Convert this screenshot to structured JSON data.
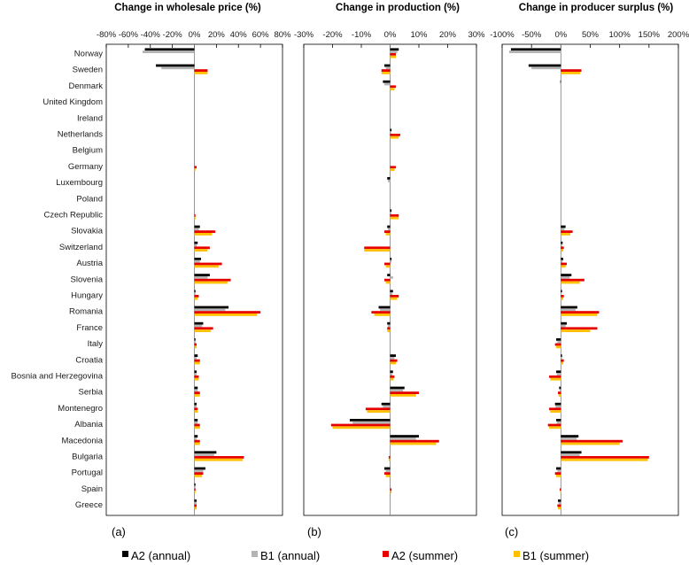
{
  "colors": {
    "A2_annual": "#000000",
    "B1_annual": "#b4b4b4",
    "A2_summer": "#e60000",
    "B1_summer": "#ffc000"
  },
  "countries": [
    "Norway",
    "Sweden",
    "Denmark",
    "United Kingdom",
    "Ireland",
    "Netherlands",
    "Belgium",
    "Germany",
    "Luxembourg",
    "Poland",
    "Czech Republic",
    "Slovakia",
    "Switzerland",
    "Austria",
    "Slovenia",
    "Hungary",
    "Romania",
    "France",
    "Italy",
    "Croatia",
    "Bosnia and Herzegovina",
    "Serbia",
    "Montenegro",
    "Albania",
    "Macedonia",
    "Bulgaria",
    "Portugal",
    "Spain",
    "Greece"
  ],
  "legend": [
    {
      "label": "A2 (annual)",
      "key": "A2_annual"
    },
    {
      "label": "B1 (annual)",
      "key": "B1_annual"
    },
    {
      "label": "A2 (summer)",
      "key": "A2_summer"
    },
    {
      "label": "B1 (summer)",
      "key": "B1_summer"
    }
  ],
  "chart_data": [
    {
      "type": "bar",
      "title": "Change in wholesale price (%)",
      "panel_label": "(a)",
      "xlim": [
        -80,
        80
      ],
      "xticks": [
        -80,
        -60,
        -40,
        -20,
        0,
        20,
        40,
        60,
        80
      ],
      "tick_labels": [
        "-80%",
        "-60%",
        "-40%",
        "-20%",
        "0%",
        "20%",
        "40%",
        "60%",
        "80%"
      ],
      "series": [
        {
          "name": "A2 (annual)",
          "key": "A2_annual",
          "values": [
            -45,
            -35,
            0,
            0,
            0,
            0,
            0,
            0,
            0,
            0,
            0,
            5,
            3,
            6,
            14,
            1,
            31,
            8,
            1,
            3,
            2,
            3,
            2,
            3,
            3,
            20,
            10,
            1,
            2
          ]
        },
        {
          "name": "B1 (annual)",
          "key": "B1_annual",
          "values": [
            -47,
            -30,
            0,
            0,
            0,
            0,
            0,
            0,
            0,
            0,
            0,
            4,
            2,
            5,
            12,
            1,
            28,
            7,
            1,
            2,
            2,
            3,
            2,
            3,
            2,
            18,
            8,
            1,
            2
          ]
        },
        {
          "name": "A2 (summer)",
          "key": "A2_summer",
          "values": [
            0,
            12,
            0,
            0,
            0,
            0,
            0,
            2,
            0,
            0,
            1,
            19,
            14,
            25,
            33,
            4,
            60,
            17,
            2,
            5,
            4,
            5,
            3,
            5,
            5,
            45,
            8,
            1,
            2
          ]
        },
        {
          "name": "B1 (summer)",
          "key": "B1_summer",
          "values": [
            0,
            12,
            0,
            0,
            0,
            0,
            0,
            1,
            0,
            0,
            1,
            16,
            12,
            22,
            30,
            3,
            57,
            15,
            2,
            5,
            4,
            5,
            3,
            5,
            5,
            44,
            7,
            1,
            2
          ]
        }
      ]
    },
    {
      "type": "bar",
      "title": "Change in production (%)",
      "panel_label": "(b)",
      "xlim": [
        -30,
        30
      ],
      "xticks": [
        -30,
        -20,
        -10,
        0,
        10,
        20,
        30
      ],
      "tick_labels": [
        "-30%",
        "-20%",
        "-10%",
        "0%",
        "10%",
        "20%",
        "30%"
      ],
      "series": [
        {
          "name": "A2 (annual)",
          "key": "A2_annual",
          "values": [
            3,
            -2,
            -2.5,
            0,
            0,
            0.5,
            0,
            0,
            -1,
            0,
            0.5,
            -1,
            0,
            0.5,
            -1,
            1,
            -4,
            -1,
            0,
            2,
            1,
            5,
            -3,
            -14,
            10,
            0,
            -2,
            0,
            0
          ]
        },
        {
          "name": "B1 (annual)",
          "key": "B1_annual",
          "values": [
            2.5,
            -1.5,
            -2,
            0,
            0,
            0.4,
            0,
            0,
            -0.8,
            0,
            0.4,
            -0.8,
            0,
            0.5,
            1,
            0.8,
            -3.5,
            -0.8,
            0,
            1.5,
            0.8,
            4.5,
            -2.5,
            -13,
            9,
            0,
            -1.5,
            0,
            0
          ]
        },
        {
          "name": "A2 (summer)",
          "key": "A2_summer",
          "values": [
            2,
            -3,
            2,
            0,
            0,
            3.5,
            0,
            2,
            0,
            0,
            3,
            -2,
            -9,
            -2,
            -2,
            3,
            -6.5,
            -1,
            0,
            2.5,
            1.5,
            10,
            -8.5,
            -20.5,
            17,
            -0.5,
            -2,
            0.5,
            0
          ]
        },
        {
          "name": "B1 (summer)",
          "key": "B1_summer",
          "values": [
            2,
            -3,
            1.5,
            0,
            0,
            3,
            0,
            1.5,
            0,
            0,
            3,
            -1.5,
            -9,
            -1.5,
            -1.5,
            2.5,
            -5.5,
            -1,
            0,
            2,
            1.2,
            9,
            -8,
            -20,
            16,
            -0.5,
            -1.5,
            0.5,
            0
          ]
        }
      ]
    },
    {
      "type": "bar",
      "title": "Change in producer surplus (%)",
      "panel_label": "(c)",
      "xlim": [
        -100,
        200
      ],
      "xticks": [
        -100,
        -50,
        0,
        50,
        100,
        150,
        200
      ],
      "tick_labels": [
        "-100%",
        "-50%",
        "0%",
        "50%",
        "100%",
        "150%",
        "200%"
      ],
      "series": [
        {
          "name": "A2 (annual)",
          "key": "A2_annual",
          "values": [
            -85,
            -55,
            -1,
            0,
            0,
            0,
            0,
            0,
            0,
            0,
            0,
            8,
            3,
            4,
            18,
            2,
            28,
            10,
            -8,
            2,
            -8,
            -3,
            -10,
            -8,
            30,
            35,
            -8,
            0,
            -5
          ]
        },
        {
          "name": "B1 (annual)",
          "key": "B1_annual",
          "values": [
            -88,
            -50,
            -1,
            0,
            0,
            0,
            0,
            0,
            0,
            0,
            0,
            6,
            2,
            3,
            15,
            1,
            25,
            8,
            -6,
            2,
            -7,
            -2,
            -9,
            -7,
            27,
            32,
            -6,
            0,
            -4
          ]
        },
        {
          "name": "A2 (summer)",
          "key": "A2_summer",
          "values": [
            0,
            35,
            0,
            0,
            0,
            0,
            0,
            0,
            0,
            0,
            0,
            20,
            5,
            10,
            40,
            5,
            65,
            62,
            -10,
            5,
            -20,
            -5,
            -20,
            -22,
            105,
            150,
            -10,
            -2,
            -6
          ]
        },
        {
          "name": "B1 (summer)",
          "key": "B1_summer",
          "values": [
            0,
            33,
            0,
            0,
            0,
            0,
            0,
            0,
            0,
            0,
            0,
            16,
            4,
            8,
            32,
            4,
            62,
            50,
            -8,
            4,
            -18,
            -4,
            -18,
            -20,
            100,
            148,
            -8,
            -1,
            -5
          ]
        }
      ]
    }
  ]
}
